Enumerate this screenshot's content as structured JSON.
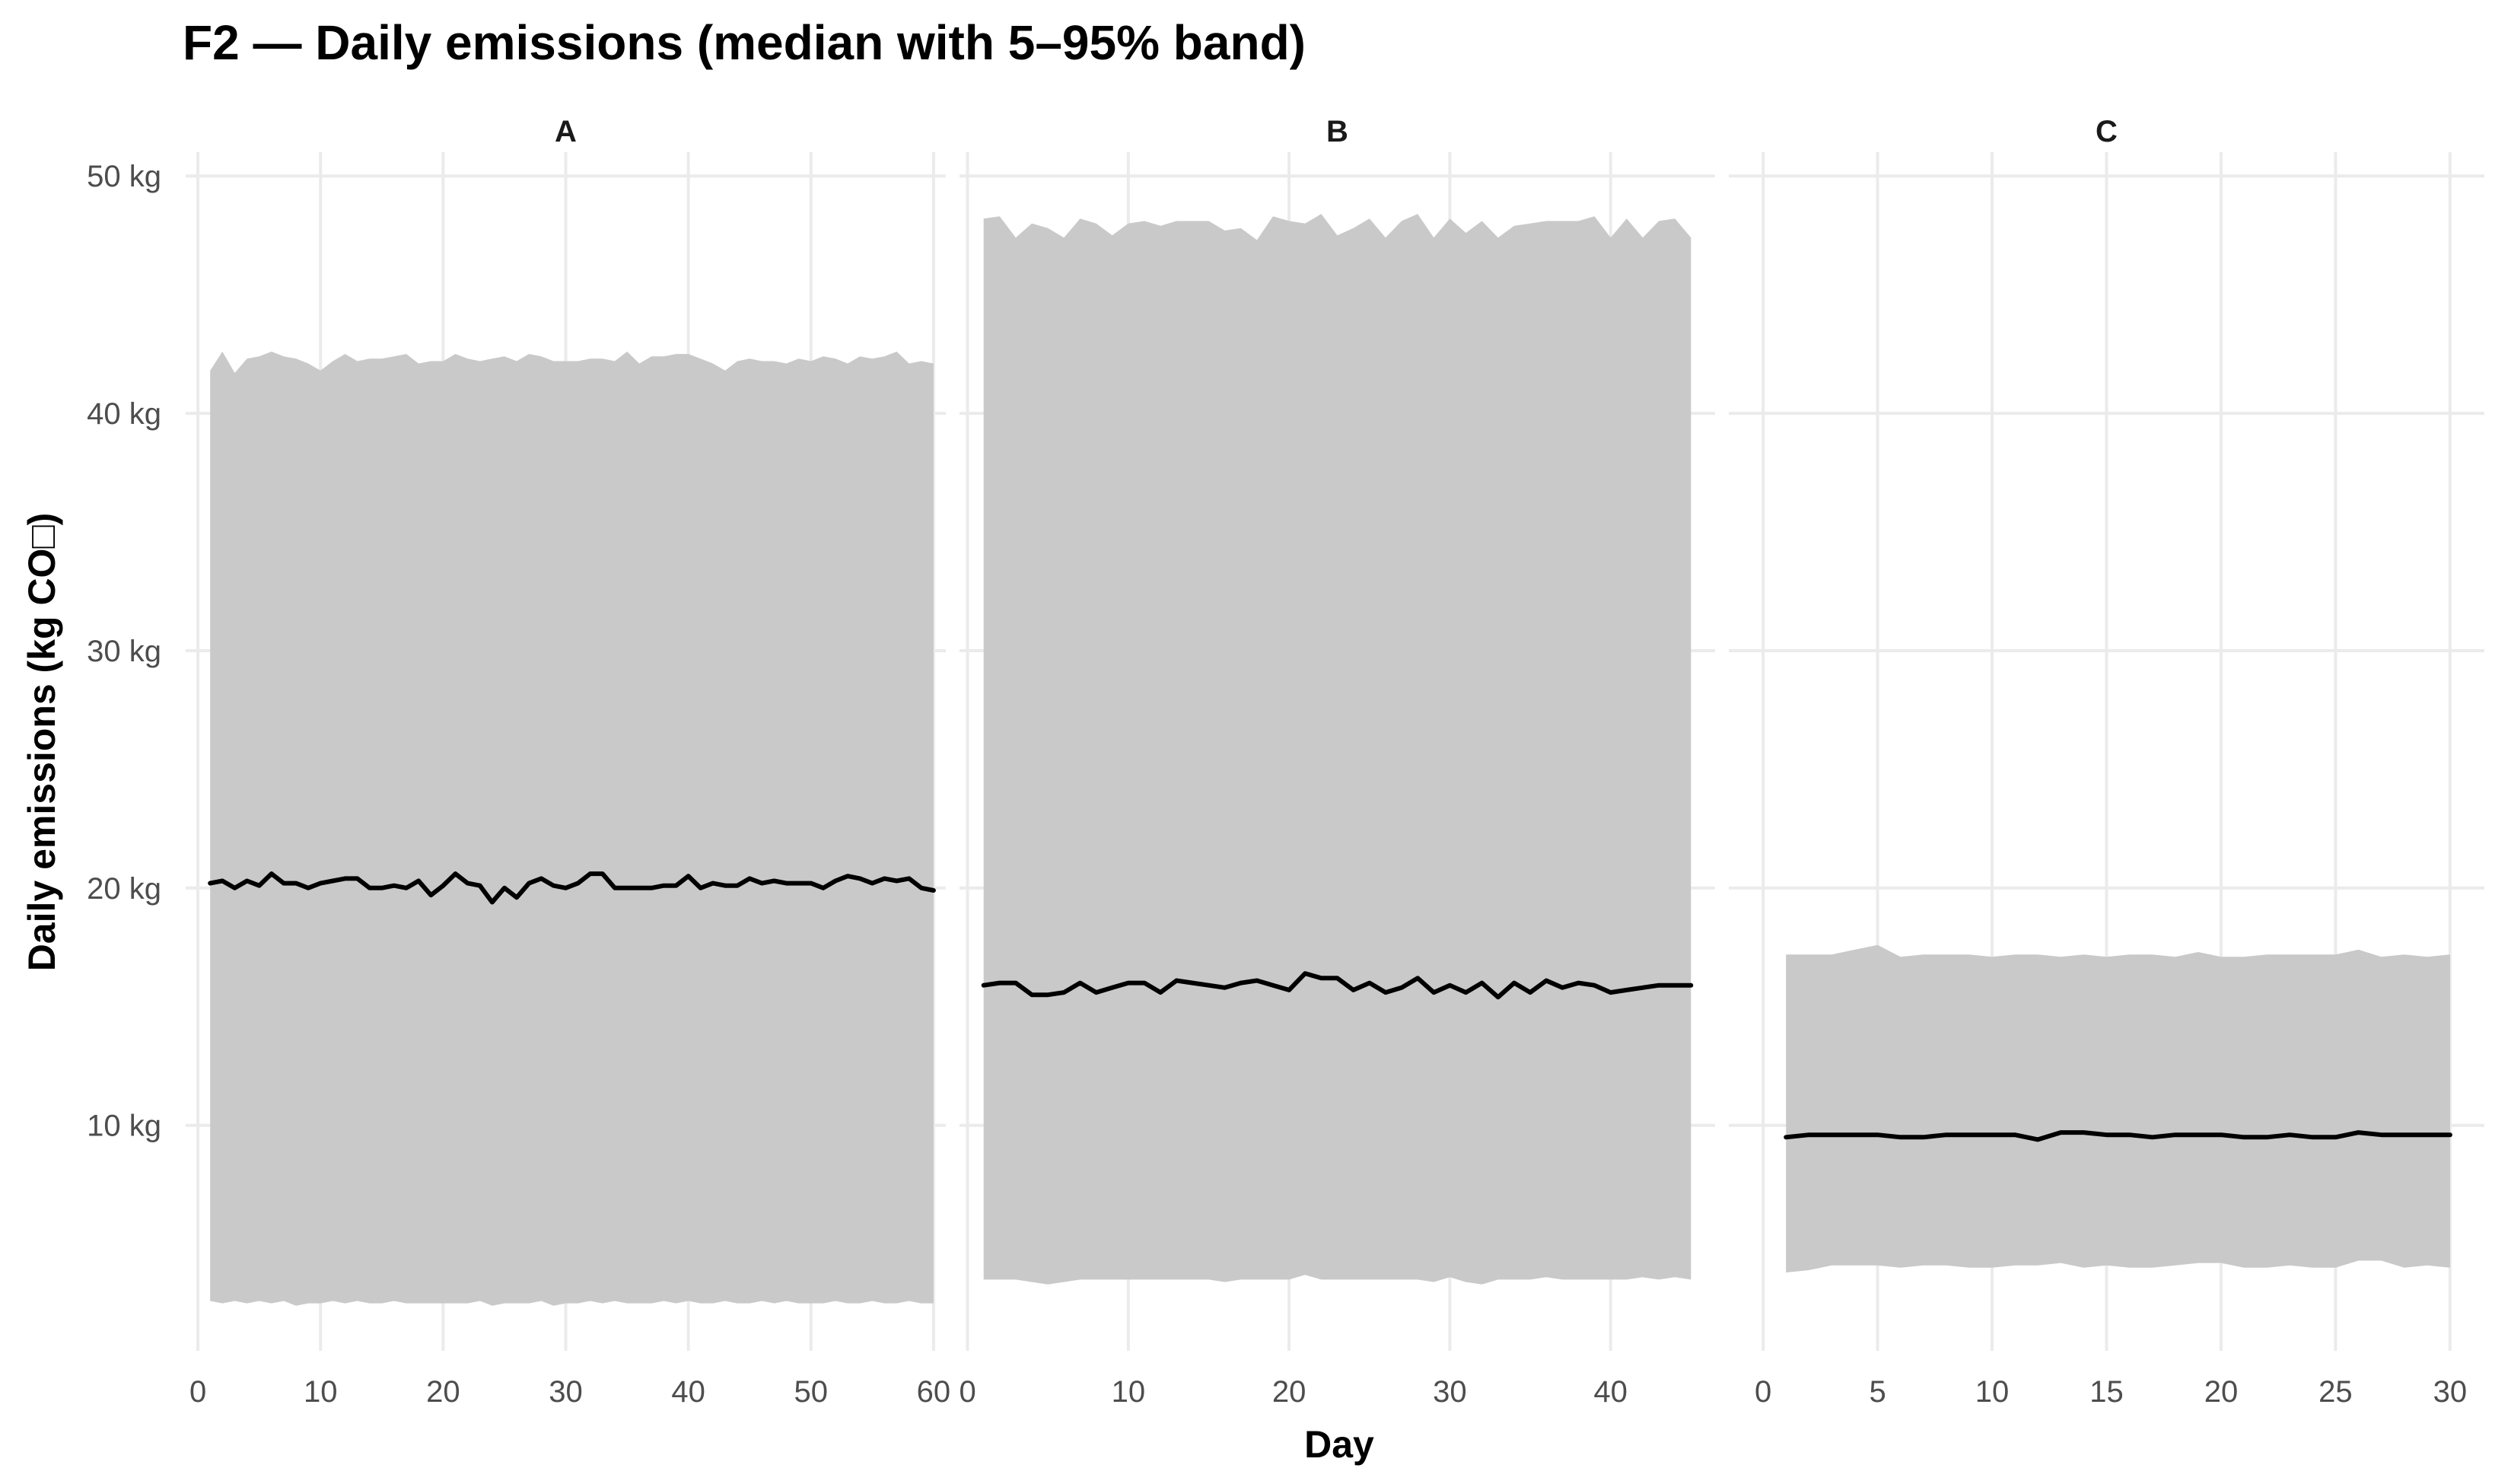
{
  "title": "F2 — Daily emissions (median with 5–95% band)",
  "xlabel": "Day",
  "ylabel": "Daily emissions (kg CO□)",
  "colors": {
    "ribbon": "#c9c9c9",
    "median": "#000000",
    "grid": "#ebebeb"
  },
  "chart_data": {
    "type": "area",
    "facets": [
      "A",
      "B",
      "C"
    ],
    "y_axis": {
      "ticks": [
        10,
        20,
        30,
        40,
        50
      ],
      "tick_labels": [
        "10 kg",
        "20 kg",
        "30 kg",
        "40 kg",
        "50 kg"
      ],
      "lim": [
        0.5,
        51
      ]
    },
    "grid": true,
    "panels": [
      {
        "facet": "A",
        "xlim": [
          -1,
          61
        ],
        "x_ticks": [
          0,
          10,
          20,
          30,
          40,
          50,
          60
        ],
        "x": [
          1,
          2,
          3,
          4,
          5,
          6,
          7,
          8,
          9,
          10,
          11,
          12,
          13,
          14,
          15,
          16,
          17,
          18,
          19,
          20,
          21,
          22,
          23,
          24,
          25,
          26,
          27,
          28,
          29,
          30,
          31,
          32,
          33,
          34,
          35,
          36,
          37,
          38,
          39,
          40,
          41,
          42,
          43,
          44,
          45,
          46,
          47,
          48,
          49,
          50,
          51,
          52,
          53,
          54,
          55,
          56,
          57,
          58,
          59,
          60
        ],
        "median": [
          20.2,
          20.3,
          20.0,
          20.3,
          20.1,
          20.6,
          20.2,
          20.2,
          20.0,
          20.2,
          20.3,
          20.4,
          20.4,
          20.0,
          20.0,
          20.1,
          20.0,
          20.3,
          19.7,
          20.1,
          20.6,
          20.2,
          20.1,
          19.4,
          20.0,
          19.6,
          20.2,
          20.4,
          20.1,
          20.0,
          20.2,
          20.6,
          20.6,
          20.0,
          20.0,
          20.0,
          20.0,
          20.1,
          20.1,
          20.5,
          20.0,
          20.2,
          20.1,
          20.1,
          20.4,
          20.2,
          20.3,
          20.2,
          20.2,
          20.2,
          20.0,
          20.3,
          20.5,
          20.4,
          20.2,
          20.4,
          20.3,
          20.4,
          20.0,
          19.9
        ],
        "lower": [
          2.6,
          2.5,
          2.6,
          2.5,
          2.6,
          2.5,
          2.6,
          2.4,
          2.5,
          2.5,
          2.6,
          2.5,
          2.6,
          2.5,
          2.5,
          2.6,
          2.5,
          2.5,
          2.5,
          2.5,
          2.5,
          2.5,
          2.6,
          2.4,
          2.5,
          2.5,
          2.5,
          2.6,
          2.4,
          2.5,
          2.5,
          2.6,
          2.5,
          2.6,
          2.5,
          2.5,
          2.5,
          2.6,
          2.5,
          2.6,
          2.5,
          2.5,
          2.6,
          2.5,
          2.5,
          2.6,
          2.5,
          2.6,
          2.5,
          2.5,
          2.5,
          2.6,
          2.5,
          2.5,
          2.6,
          2.5,
          2.5,
          2.6,
          2.5,
          2.5
        ],
        "upper": [
          41.8,
          42.6,
          41.7,
          42.3,
          42.4,
          42.6,
          42.4,
          42.3,
          42.1,
          41.8,
          42.2,
          42.5,
          42.2,
          42.3,
          42.3,
          42.4,
          42.5,
          42.1,
          42.2,
          42.2,
          42.5,
          42.3,
          42.2,
          42.3,
          42.4,
          42.2,
          42.5,
          42.4,
          42.2,
          42.2,
          42.2,
          42.3,
          42.3,
          42.2,
          42.6,
          42.1,
          42.4,
          42.4,
          42.5,
          42.5,
          42.3,
          42.1,
          41.8,
          42.2,
          42.3,
          42.2,
          42.2,
          42.1,
          42.3,
          42.2,
          42.4,
          42.3,
          42.1,
          42.4,
          42.3,
          42.4,
          42.6,
          42.1,
          42.2,
          42.1
        ]
      },
      {
        "facet": "B",
        "xlim": [
          -0.5,
          46.5
        ],
        "x_ticks": [
          0,
          10,
          20,
          30,
          40
        ],
        "x": [
          1,
          2,
          3,
          4,
          5,
          6,
          7,
          8,
          9,
          10,
          11,
          12,
          13,
          14,
          15,
          16,
          17,
          18,
          19,
          20,
          21,
          22,
          23,
          24,
          25,
          26,
          27,
          28,
          29,
          30,
          31,
          32,
          33,
          34,
          35,
          36,
          37,
          38,
          39,
          40,
          41,
          42,
          43,
          44,
          45
        ],
        "median": [
          15.9,
          16.0,
          16.0,
          15.5,
          15.5,
          15.6,
          16.0,
          15.6,
          15.8,
          16.0,
          16.0,
          15.6,
          16.1,
          16.0,
          15.9,
          15.8,
          16.0,
          16.1,
          15.9,
          15.7,
          16.4,
          16.2,
          16.2,
          15.7,
          16.0,
          15.6,
          15.8,
          16.2,
          15.6,
          15.9,
          15.6,
          16.0,
          15.4,
          16.0,
          15.6,
          16.1,
          15.8,
          16.0,
          15.9,
          15.6,
          15.7,
          15.8,
          15.9,
          15.9,
          15.9
        ],
        "lower": [
          3.5,
          3.5,
          3.5,
          3.4,
          3.3,
          3.4,
          3.5,
          3.5,
          3.5,
          3.5,
          3.5,
          3.5,
          3.5,
          3.5,
          3.5,
          3.4,
          3.5,
          3.5,
          3.5,
          3.5,
          3.7,
          3.5,
          3.5,
          3.5,
          3.5,
          3.5,
          3.5,
          3.5,
          3.4,
          3.6,
          3.4,
          3.3,
          3.5,
          3.5,
          3.5,
          3.6,
          3.5,
          3.5,
          3.5,
          3.5,
          3.5,
          3.6,
          3.5,
          3.6,
          3.5
        ],
        "upper": [
          48.2,
          48.3,
          47.4,
          48.0,
          47.8,
          47.4,
          48.2,
          48.0,
          47.5,
          48.0,
          48.1,
          47.9,
          48.1,
          48.1,
          48.1,
          47.7,
          47.8,
          47.3,
          48.3,
          48.1,
          48.0,
          48.4,
          47.5,
          47.8,
          48.2,
          47.4,
          48.1,
          48.4,
          47.4,
          48.2,
          47.6,
          48.1,
          47.4,
          47.9,
          48.0,
          48.1,
          48.1,
          48.1,
          48.3,
          47.4,
          48.2,
          47.4,
          48.1,
          48.2,
          47.4
        ]
      },
      {
        "facet": "C",
        "xlim": [
          -1.5,
          31.5
        ],
        "x_ticks": [
          0,
          5,
          10,
          15,
          20,
          25,
          30
        ],
        "x": [
          1,
          2,
          3,
          4,
          5,
          6,
          7,
          8,
          9,
          10,
          11,
          12,
          13,
          14,
          15,
          16,
          17,
          18,
          19,
          20,
          21,
          22,
          23,
          24,
          25,
          26,
          27,
          28,
          29,
          30
        ],
        "median": [
          9.5,
          9.6,
          9.6,
          9.6,
          9.6,
          9.5,
          9.5,
          9.6,
          9.6,
          9.6,
          9.6,
          9.4,
          9.7,
          9.7,
          9.6,
          9.6,
          9.5,
          9.6,
          9.6,
          9.6,
          9.5,
          9.5,
          9.6,
          9.5,
          9.5,
          9.7,
          9.6,
          9.6,
          9.6,
          9.6
        ],
        "lower": [
          3.8,
          3.9,
          4.1,
          4.1,
          4.1,
          4.0,
          4.1,
          4.1,
          4.0,
          4.0,
          4.1,
          4.1,
          4.2,
          4.0,
          4.1,
          4.0,
          4.0,
          4.1,
          4.2,
          4.2,
          4.0,
          4.0,
          4.1,
          4.0,
          4.0,
          4.3,
          4.3,
          4.0,
          4.1,
          4.0
        ],
        "upper": [
          17.2,
          17.2,
          17.2,
          17.4,
          17.6,
          17.1,
          17.2,
          17.2,
          17.2,
          17.1,
          17.2,
          17.2,
          17.1,
          17.2,
          17.1,
          17.2,
          17.2,
          17.1,
          17.3,
          17.1,
          17.1,
          17.2,
          17.2,
          17.2,
          17.2,
          17.4,
          17.1,
          17.2,
          17.1,
          17.2
        ]
      }
    ]
  }
}
